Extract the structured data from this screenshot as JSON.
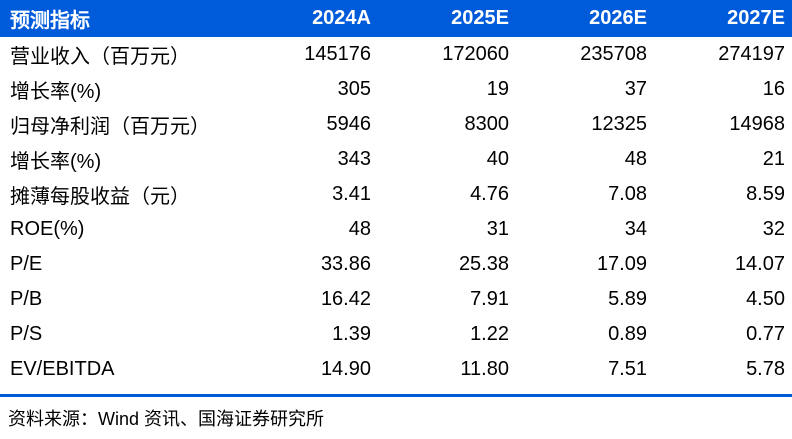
{
  "table": {
    "header": {
      "label": "预测指标",
      "columns": [
        "2024A",
        "2025E",
        "2026E",
        "2027E"
      ]
    },
    "rows": [
      {
        "label": "营业收入（百万元）",
        "values": [
          "145176",
          "172060",
          "235708",
          "274197"
        ]
      },
      {
        "label": "增长率(%)",
        "values": [
          "305",
          "19",
          "37",
          "16"
        ]
      },
      {
        "label": "归母净利润（百万元）",
        "values": [
          "5946",
          "8300",
          "12325",
          "14968"
        ]
      },
      {
        "label": "增长率(%)",
        "values": [
          "343",
          "40",
          "48",
          "21"
        ]
      },
      {
        "label": "摊薄每股收益（元）",
        "values": [
          "3.41",
          "4.76",
          "7.08",
          "8.59"
        ]
      },
      {
        "label": "ROE(%)",
        "values": [
          "48",
          "31",
          "34",
          "32"
        ]
      },
      {
        "label": "P/E",
        "values": [
          "33.86",
          "25.38",
          "17.09",
          "14.07"
        ]
      },
      {
        "label": "P/B",
        "values": [
          "16.42",
          "7.91",
          "5.89",
          "4.50"
        ]
      },
      {
        "label": "P/S",
        "values": [
          "1.39",
          "1.22",
          "0.89",
          "0.77"
        ]
      },
      {
        "label": "EV/EBITDA",
        "values": [
          "14.90",
          "11.80",
          "7.51",
          "5.78"
        ]
      }
    ],
    "source": "资料来源：Wind 资讯、国海证券研究所"
  },
  "colors": {
    "header_bg": "#005BDB",
    "header_text": "#FFFFFF",
    "rule": "#005BDB",
    "body_text": "#000000"
  }
}
